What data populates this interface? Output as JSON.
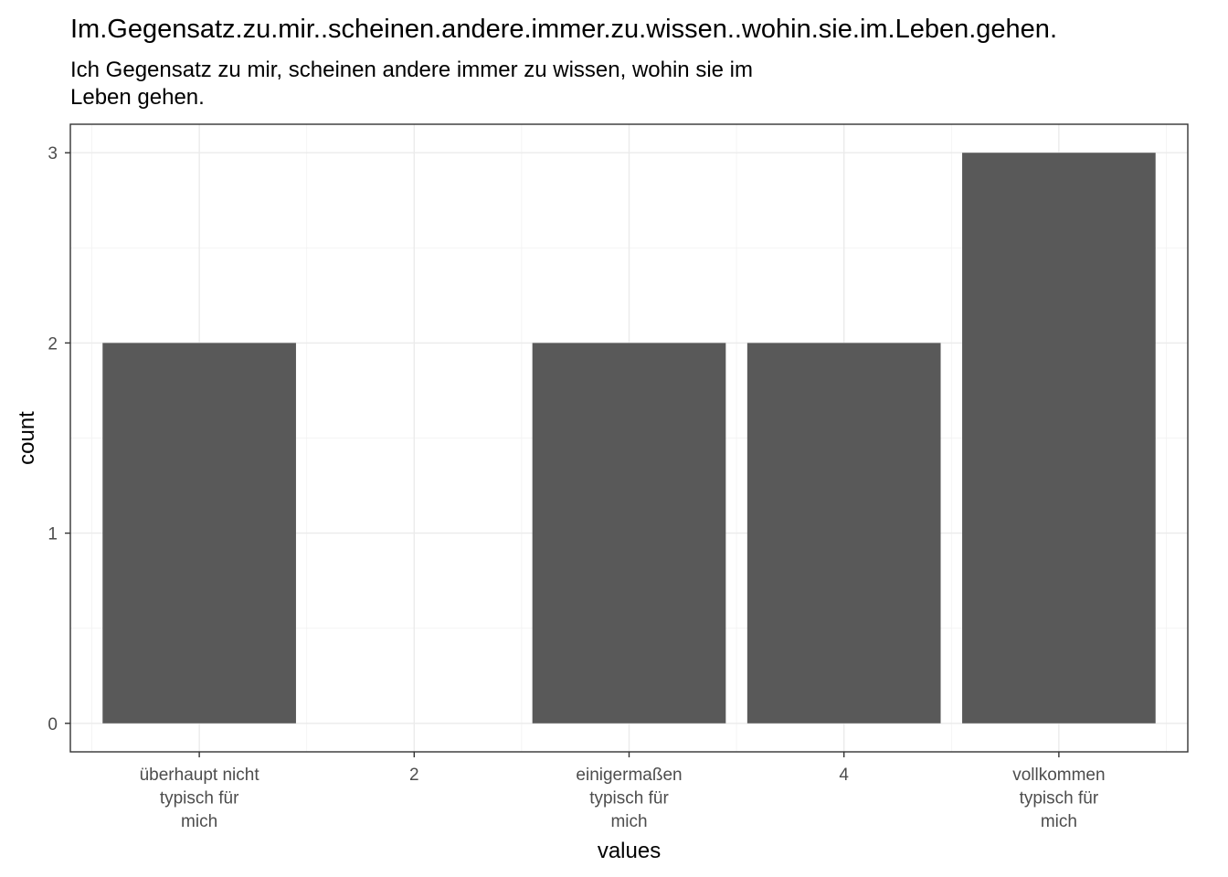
{
  "chart_data": {
    "type": "bar",
    "title": "Im.Gegensatz.zu.mir..scheinen.andere.immer.zu.wissen..wohin.sie.im.Leben.gehen.",
    "subtitle_lines": [
      "Ich Gegensatz zu mir, scheinen andere immer zu wissen, wohin sie im",
      "Leben gehen."
    ],
    "xlabel": "values",
    "ylabel": "count",
    "categories": [
      [
        "überhaupt nicht",
        "typisch für",
        "mich"
      ],
      [
        "2"
      ],
      [
        "einigermaßen",
        "typisch für",
        "mich"
      ],
      [
        "4"
      ],
      [
        "vollkommen",
        "typisch für",
        "mich"
      ]
    ],
    "values": [
      2,
      0,
      2,
      2,
      3
    ],
    "ylim": [
      -0.15,
      3.15
    ],
    "yticks": [
      0,
      1,
      2,
      3
    ],
    "grid": true,
    "bar_color": "#595959"
  }
}
